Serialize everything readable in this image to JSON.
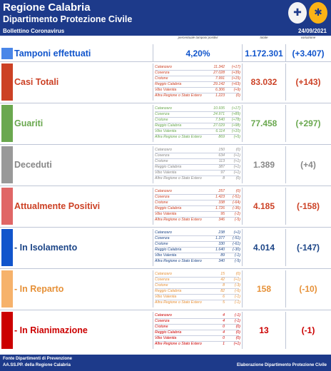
{
  "header": {
    "region": "Regione Calabria",
    "department": "Dipartimento Protezione Civile",
    "bulletin": "Bollettino Coronavirus",
    "date": "24/09/2021"
  },
  "columns": {
    "percent_header": "percentuale tamponi positivi",
    "total_header": "totale",
    "variation_header": "variazione"
  },
  "tamponi": {
    "label": "Tamponi effettuati",
    "percent": "4,20%",
    "total": "1.172.301",
    "variation": "(+3.407)",
    "color": "#4a86e8"
  },
  "sections": [
    {
      "key": "casi",
      "label": "Casi Totali",
      "color": "#cc4125",
      "text_color": "#cc4125",
      "total": "83.032",
      "variation": "(+143)",
      "rows": [
        {
          "name": "Catanzaro",
          "value": "11.342",
          "delta": "(+17)"
        },
        {
          "name": "Cosenza",
          "value": "27.028",
          "delta": "(+39)"
        },
        {
          "name": "Crotone",
          "value": "7.991",
          "delta": "(+15)"
        },
        {
          "name": "Reggio Calabria",
          "value": "29.142",
          "delta": "(+63)"
        },
        {
          "name": "Vibo Valentia",
          "value": "6.306",
          "delta": "(+9)"
        },
        {
          "name": "Altra Regione o Stato Estero",
          "value": "1.223",
          "delta": "(0)"
        }
      ]
    },
    {
      "key": "guariti",
      "label": "Guariti",
      "color": "#6aa84f",
      "text_color": "#6aa84f",
      "total": "77.458",
      "variation": "(+297)",
      "rows": [
        {
          "name": "Catanzaro",
          "value": "10.935",
          "delta": "(+17)"
        },
        {
          "name": "Cosenza",
          "value": "24.971",
          "delta": "(+89)"
        },
        {
          "name": "Crotone",
          "value": "7.540",
          "delta": "(+78)"
        },
        {
          "name": "Reggio Calabria",
          "value": "27.029",
          "delta": "(+98)"
        },
        {
          "name": "Vibo Valentia",
          "value": "6.114",
          "delta": "(+10)"
        },
        {
          "name": "Altra Regione o Stato Estero",
          "value": "869",
          "delta": "(+5)"
        }
      ]
    },
    {
      "key": "deceduti",
      "label": "Deceduti",
      "color": "#999999",
      "text_color": "#888888",
      "total": "1.389",
      "variation": "(+4)",
      "rows": [
        {
          "name": "Catanzaro",
          "value": "150",
          "delta": "(0)"
        },
        {
          "name": "Cosenza",
          "value": "634",
          "delta": "(+1)"
        },
        {
          "name": "Crotone",
          "value": "113",
          "delta": "(+1)"
        },
        {
          "name": "Reggio Calabria",
          "value": "387",
          "delta": "(+1)"
        },
        {
          "name": "Vibo Valentia",
          "value": "97",
          "delta": "(+1)"
        },
        {
          "name": "Altre Regione o Stato Estero",
          "value": "8",
          "delta": "(0)"
        }
      ]
    },
    {
      "key": "positivi",
      "label": "Attualmente Positivi",
      "color": "#e06666",
      "text_color": "#cc4125",
      "total": "4.185",
      "variation": "(-158)",
      "rows": [
        {
          "name": "Catanzaro",
          "value": "257",
          "delta": "(0)"
        },
        {
          "name": "Cosenza",
          "value": "1.423",
          "delta": "(-51)"
        },
        {
          "name": "Crotone",
          "value": "338",
          "delta": "(-64)"
        },
        {
          "name": "Reggio Calabria",
          "value": "1.726",
          "delta": "(-36)"
        },
        {
          "name": "Vibo Valentia",
          "value": "95",
          "delta": "(-2)"
        },
        {
          "name": "Altra Regione o Stato Estero",
          "value": "346",
          "delta": "(-5)"
        }
      ]
    },
    {
      "key": "isolamento",
      "label": "- In Isolamento",
      "color": "#1155cc",
      "text_color": "#1c4587",
      "total": "4.014",
      "variation": "(-147)",
      "rows": [
        {
          "name": "Catanzaro",
          "value": "238",
          "delta": "(+1)"
        },
        {
          "name": "Cosenza",
          "value": "1.377",
          "delta": "(-51)"
        },
        {
          "name": "Crotone",
          "value": "330",
          "delta": "(-61)"
        },
        {
          "name": "Reggio Calabria",
          "value": "1.640",
          "delta": "(-30)"
        },
        {
          "name": "Vibo Valentia",
          "value": "89",
          "delta": "(-1)"
        },
        {
          "name": "Altra Regione o Stato Estero",
          "value": "340",
          "delta": "(-5)"
        }
      ]
    },
    {
      "key": "reparto",
      "label": "- In Reparto",
      "color": "#f6b26b",
      "text_color": "#e69138",
      "total": "158",
      "variation": "(-10)",
      "rows": [
        {
          "name": "Catanzaro",
          "value": "15",
          "delta": "(0)"
        },
        {
          "name": "Cosenza",
          "value": "42",
          "delta": "(+1)"
        },
        {
          "name": "Crotone",
          "value": "8",
          "delta": "(-3)"
        },
        {
          "name": "Reggio Calabria",
          "value": "82",
          "delta": "(-6)"
        },
        {
          "name": "Vibo Valentia",
          "value": "6",
          "delta": "(-1)"
        },
        {
          "name": "Altra Regione o Stato Estero",
          "value": "5",
          "delta": "(-1)"
        }
      ]
    },
    {
      "key": "rianimazione",
      "label": "- In Rianimazione",
      "color": "#cc0000",
      "text_color": "#cc0000",
      "total": "13",
      "variation": "(-1)",
      "rows": [
        {
          "name": "Catanzaro",
          "value": "4",
          "delta": "(-1)"
        },
        {
          "name": "Cosenza",
          "value": "4",
          "delta": "(-1)"
        },
        {
          "name": "Crotone",
          "value": "0",
          "delta": "(0)"
        },
        {
          "name": "Reggio Calabria",
          "value": "4",
          "delta": "(0)"
        },
        {
          "name": "Vibo Valentia",
          "value": "0",
          "delta": "(0)"
        },
        {
          "name": "Altre Regione o Stato Estero",
          "value": "1",
          "delta": "(+1)"
        }
      ]
    }
  ],
  "footer": {
    "source_line1": "Fonte Dipartimenti di Prevenzione",
    "source_line2": "AA.SS.PP.  della Regione Calabria",
    "credit": "Elaborazione Dipartimento Protezione Civile"
  }
}
